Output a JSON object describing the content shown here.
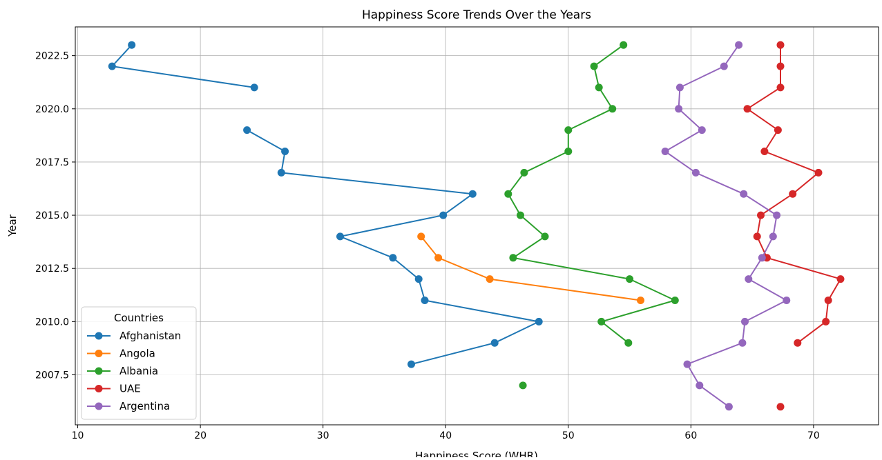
{
  "chart_data": {
    "type": "line",
    "title": "Happiness Score Trends Over the Years",
    "xlabel": "Happiness Score (WHR)",
    "ylabel": "Year",
    "xlim": [
      9.8,
      75.3
    ],
    "ylim": [
      2005.15,
      2023.85
    ],
    "xticks": [
      10,
      20,
      30,
      40,
      50,
      60,
      70
    ],
    "yticks": [
      2007.5,
      2010.0,
      2012.5,
      2015.0,
      2017.5,
      2020.0,
      2022.5
    ],
    "xtick_labels": [
      "10",
      "20",
      "30",
      "40",
      "50",
      "60",
      "70"
    ],
    "ytick_labels": [
      "2007.5",
      "2010.0",
      "2012.5",
      "2015.0",
      "2017.5",
      "2020.0",
      "2022.5"
    ],
    "grid": true,
    "legend": {
      "title": "Countries",
      "placement": "lower-left"
    },
    "series": [
      {
        "name": "Afghanistan",
        "color": "#1f77b4",
        "points": [
          [
            37.2,
            2008
          ],
          [
            44.0,
            2009
          ],
          [
            47.6,
            2010
          ],
          [
            38.3,
            2011
          ],
          [
            37.8,
            2012
          ],
          [
            35.7,
            2013
          ],
          [
            31.4,
            2014
          ],
          [
            39.8,
            2015
          ],
          [
            42.2,
            2016
          ],
          [
            26.6,
            2017
          ],
          [
            26.9,
            2018
          ],
          [
            23.8,
            2019
          ],
          [
            null,
            2020
          ],
          [
            24.4,
            2021
          ],
          [
            12.8,
            2022
          ],
          [
            14.4,
            2023
          ]
        ]
      },
      {
        "name": "Angola",
        "color": "#ff7f0e",
        "points": [
          [
            55.9,
            2011
          ],
          [
            43.6,
            2012
          ],
          [
            39.4,
            2013
          ],
          [
            38.0,
            2014
          ]
        ]
      },
      {
        "name": "Albania",
        "color": "#2ca02c",
        "points": [
          [
            46.3,
            2007
          ],
          [
            null,
            2008
          ],
          [
            54.9,
            2009
          ],
          [
            52.7,
            2010
          ],
          [
            58.7,
            2011
          ],
          [
            55.0,
            2012
          ],
          [
            45.5,
            2013
          ],
          [
            48.1,
            2014
          ],
          [
            46.1,
            2015
          ],
          [
            45.1,
            2016
          ],
          [
            46.4,
            2017
          ],
          [
            50.0,
            2018
          ],
          [
            50.0,
            2019
          ],
          [
            53.6,
            2020
          ],
          [
            52.5,
            2021
          ],
          [
            52.1,
            2022
          ],
          [
            54.5,
            2023
          ]
        ]
      },
      {
        "name": "UAE",
        "color": "#d62728",
        "points": [
          [
            67.3,
            2006
          ],
          [
            null,
            2007
          ],
          [
            null,
            2008
          ],
          [
            68.7,
            2009
          ],
          [
            71.0,
            2010
          ],
          [
            71.2,
            2011
          ],
          [
            72.2,
            2012
          ],
          [
            66.2,
            2013
          ],
          [
            65.4,
            2014
          ],
          [
            65.7,
            2015
          ],
          [
            68.3,
            2016
          ],
          [
            70.4,
            2017
          ],
          [
            66.0,
            2018
          ],
          [
            67.1,
            2019
          ],
          [
            64.6,
            2020
          ],
          [
            67.3,
            2021
          ],
          [
            67.3,
            2022
          ],
          [
            67.3,
            2023
          ]
        ]
      },
      {
        "name": "Argentina",
        "color": "#9467bd",
        "points": [
          [
            63.1,
            2006
          ],
          [
            60.7,
            2007
          ],
          [
            59.7,
            2008
          ],
          [
            64.2,
            2009
          ],
          [
            64.4,
            2010
          ],
          [
            67.8,
            2011
          ],
          [
            64.7,
            2012
          ],
          [
            65.8,
            2013
          ],
          [
            66.7,
            2014
          ],
          [
            67.0,
            2015
          ],
          [
            64.3,
            2016
          ],
          [
            60.4,
            2017
          ],
          [
            57.9,
            2018
          ],
          [
            60.9,
            2019
          ],
          [
            59.0,
            2020
          ],
          [
            59.1,
            2021
          ],
          [
            62.7,
            2022
          ],
          [
            63.9,
            2023
          ]
        ]
      }
    ]
  }
}
